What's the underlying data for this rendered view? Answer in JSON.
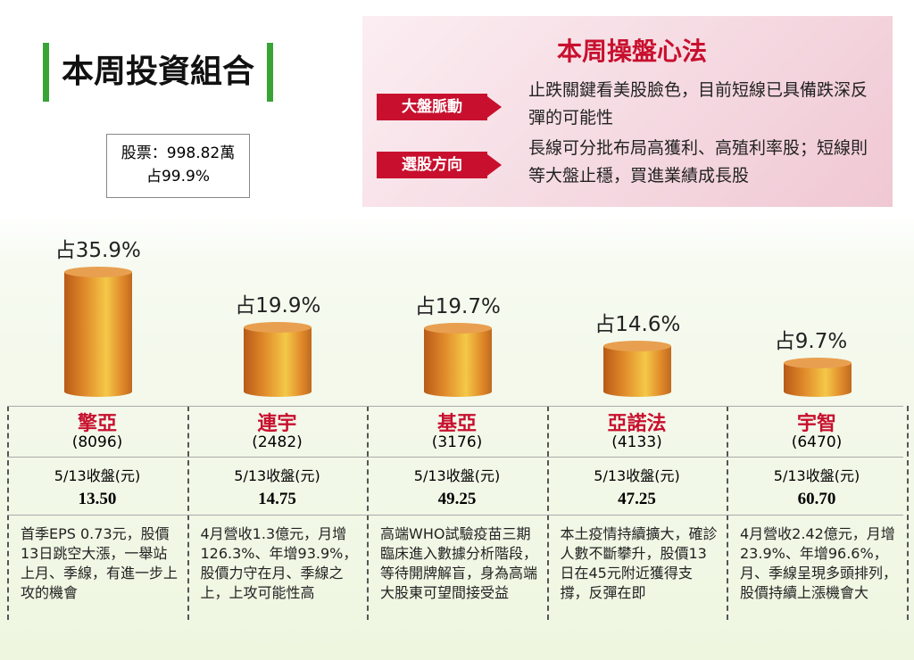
{
  "header": {
    "title": "本周投資組合"
  },
  "holdings": {
    "line1": "股票：998.82萬",
    "line2": "占99.9%"
  },
  "strategy": {
    "title": "本周操盤心法",
    "items": [
      {
        "tag": "大盤脈動",
        "text": "止跌關鍵看美股臉色，目前短線已具備跌深反彈的可能性"
      },
      {
        "tag": "選股方向",
        "text": "長線可分批布局高獲利、高殖利率股；短線則等大盤止穩，買進業績成長股"
      }
    ]
  },
  "chart_data": {
    "type": "bar",
    "color": "#e08a2a",
    "categories": [
      "擎亞",
      "連宇",
      "基亞",
      "亞諾法",
      "宇智"
    ],
    "values": [
      35.9,
      19.9,
      19.7,
      14.6,
      9.7
    ],
    "value_labels": [
      "占35.9%",
      "占19.9%",
      "占19.7%",
      "占14.6%",
      "占9.7%"
    ],
    "codes": [
      "(8096)",
      "(2482)",
      "(3176)",
      "(4133)",
      "(6470)"
    ],
    "price_label": "5/13收盤(元)",
    "prices": [
      "13.50",
      "14.75",
      "49.25",
      "47.25",
      "60.70"
    ],
    "notes": [
      "首季EPS 0.73元，股價13日跳空大漲，一舉站上月、季線，有進一步上攻的機會",
      "4月營收1.3億元，月增126.3%、年增93.9%，股價力守在月、季線之上，上攻可能性高",
      "高端WHO試驗疫苗三期臨床進入數據分析階段，等待開牌解盲，身為高端大股東可望間接受益",
      "本土疫情持續擴大，確診人數不斷攀升，股價13日在45元附近獲得支撐，反彈在即",
      "4月營收2.42億元，月增23.9%、年增96.6%，月、季線呈現多頭排列，股價持續上漲機會大"
    ]
  }
}
